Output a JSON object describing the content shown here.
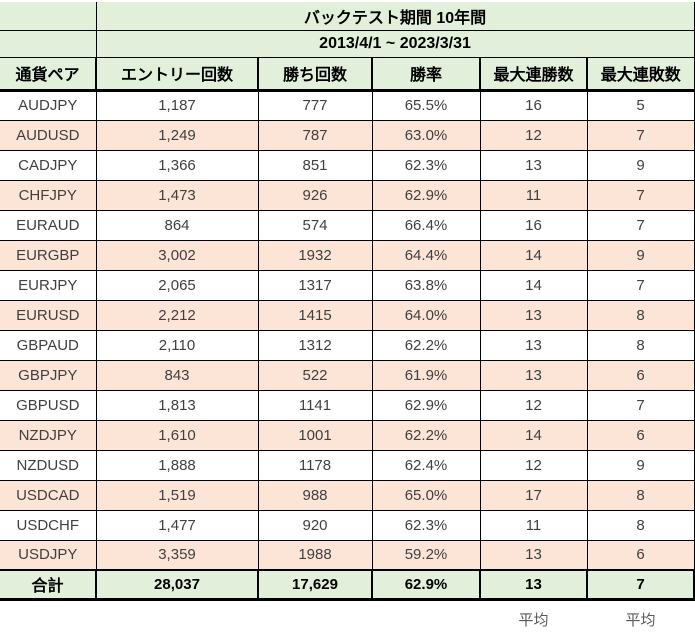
{
  "chart_data": {
    "type": "table",
    "title": "バックテスト期間 10年間",
    "period": "2013/4/1 ~ 2023/3/31",
    "columns": [
      "通貨ペア",
      "エントリー回数",
      "勝ち回数",
      "勝率",
      "最大連勝数",
      "最大連敗数"
    ],
    "row_keys": [
      "pair",
      "entries",
      "wins",
      "win_rate",
      "max_win_streak",
      "max_lose_streak"
    ],
    "rows": [
      {
        "pair": "AUDJPY",
        "entries": "1,187",
        "wins": "777",
        "win_rate": "65.5%",
        "max_win_streak": "16",
        "max_lose_streak": "5"
      },
      {
        "pair": "AUDUSD",
        "entries": "1,249",
        "wins": "787",
        "win_rate": "63.0%",
        "max_win_streak": "12",
        "max_lose_streak": "7"
      },
      {
        "pair": "CADJPY",
        "entries": "1,366",
        "wins": "851",
        "win_rate": "62.3%",
        "max_win_streak": "13",
        "max_lose_streak": "9"
      },
      {
        "pair": "CHFJPY",
        "entries": "1,473",
        "wins": "926",
        "win_rate": "62.9%",
        "max_win_streak": "11",
        "max_lose_streak": "7"
      },
      {
        "pair": "EURAUD",
        "entries": "864",
        "wins": "574",
        "win_rate": "66.4%",
        "max_win_streak": "16",
        "max_lose_streak": "7"
      },
      {
        "pair": "EURGBP",
        "entries": "3,002",
        "wins": "1932",
        "win_rate": "64.4%",
        "max_win_streak": "14",
        "max_lose_streak": "9"
      },
      {
        "pair": "EURJPY",
        "entries": "2,065",
        "wins": "1317",
        "win_rate": "63.8%",
        "max_win_streak": "14",
        "max_lose_streak": "7"
      },
      {
        "pair": "EURUSD",
        "entries": "2,212",
        "wins": "1415",
        "win_rate": "64.0%",
        "max_win_streak": "13",
        "max_lose_streak": "8"
      },
      {
        "pair": "GBPAUD",
        "entries": "2,110",
        "wins": "1312",
        "win_rate": "62.2%",
        "max_win_streak": "13",
        "max_lose_streak": "8"
      },
      {
        "pair": "GBPJPY",
        "entries": "843",
        "wins": "522",
        "win_rate": "61.9%",
        "max_win_streak": "13",
        "max_lose_streak": "6"
      },
      {
        "pair": "GBPUSD",
        "entries": "1,813",
        "wins": "1141",
        "win_rate": "62.9%",
        "max_win_streak": "12",
        "max_lose_streak": "7"
      },
      {
        "pair": "NZDJPY",
        "entries": "1,610",
        "wins": "1001",
        "win_rate": "62.2%",
        "max_win_streak": "14",
        "max_lose_streak": "6"
      },
      {
        "pair": "NZDUSD",
        "entries": "1,888",
        "wins": "1178",
        "win_rate": "62.4%",
        "max_win_streak": "12",
        "max_lose_streak": "9"
      },
      {
        "pair": "USDCAD",
        "entries": "1,519",
        "wins": "988",
        "win_rate": "65.0%",
        "max_win_streak": "17",
        "max_lose_streak": "8"
      },
      {
        "pair": "USDCHF",
        "entries": "1,477",
        "wins": "920",
        "win_rate": "62.3%",
        "max_win_streak": "11",
        "max_lose_streak": "8"
      },
      {
        "pair": "USDJPY",
        "entries": "3,359",
        "wins": "1988",
        "win_rate": "59.2%",
        "max_win_streak": "13",
        "max_lose_streak": "6"
      }
    ],
    "total": {
      "label": "合計",
      "entries": "28,037",
      "wins": "17,629",
      "win_rate": "62.9%",
      "max_win_streak": "13",
      "max_lose_streak": "7"
    },
    "avg_labels": [
      "平均",
      "平均"
    ],
    "colors": {
      "header_green": "#e2efda",
      "stripe_peach": "#fce4d6",
      "total_green": "#e2efda",
      "border_black": "#000000",
      "text_dark": "#404040",
      "text_muted": "#595959"
    }
  }
}
